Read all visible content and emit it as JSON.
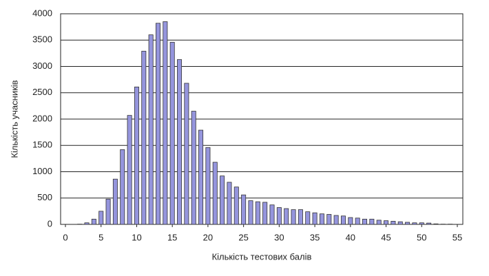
{
  "chart_data": {
    "type": "bar",
    "xlabel": "Кількість тестових балів",
    "ylabel": "Кількість учасників",
    "x": [
      0,
      1,
      2,
      3,
      4,
      5,
      6,
      7,
      8,
      9,
      10,
      11,
      12,
      13,
      14,
      15,
      16,
      17,
      18,
      19,
      20,
      21,
      22,
      23,
      24,
      25,
      26,
      27,
      28,
      29,
      30,
      31,
      32,
      33,
      34,
      35,
      36,
      37,
      38,
      39,
      40,
      41,
      42,
      43,
      44,
      45,
      46,
      47,
      48,
      49,
      50,
      51,
      52,
      53,
      54
    ],
    "values": [
      0,
      0,
      5,
      30,
      100,
      250,
      480,
      860,
      1420,
      2070,
      2610,
      3290,
      3600,
      3820,
      3850,
      3460,
      3130,
      2680,
      2150,
      1790,
      1460,
      1180,
      920,
      800,
      710,
      560,
      450,
      430,
      420,
      370,
      320,
      300,
      280,
      280,
      240,
      220,
      200,
      190,
      170,
      160,
      130,
      120,
      100,
      100,
      80,
      70,
      60,
      50,
      40,
      30,
      30,
      25,
      10,
      5,
      5
    ],
    "color": "#9595dd",
    "xlim": [
      0,
      55
    ],
    "xticks": [
      0,
      5,
      10,
      15,
      20,
      25,
      30,
      35,
      40,
      45,
      50,
      55
    ],
    "ylim": [
      0,
      4000
    ],
    "yticks": [
      0,
      500,
      1000,
      1500,
      2000,
      2500,
      3000,
      3500,
      4000
    ],
    "grid": true
  }
}
